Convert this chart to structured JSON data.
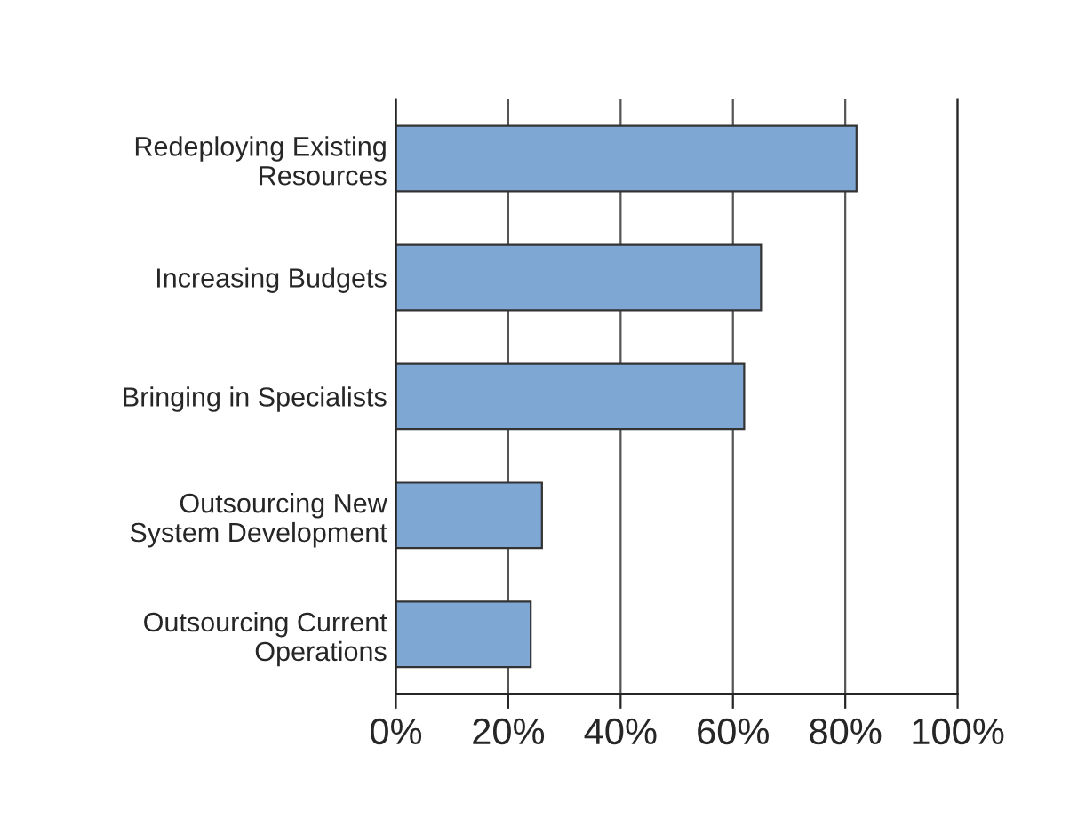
{
  "chart_data": {
    "type": "bar",
    "orientation": "horizontal",
    "categories": [
      "Redeploying Existing\nResources",
      "Increasing Budgets",
      "Bringing in Specialists",
      "Outsourcing New\nSystem Development",
      "Outsourcing Current\nOperations"
    ],
    "values": [
      82,
      65,
      62,
      26,
      24
    ],
    "color": "#7fa7d4",
    "xlim": [
      0,
      100
    ],
    "xticks": [
      {
        "value": 0,
        "label": "0%"
      },
      {
        "value": 20,
        "label": "20%"
      },
      {
        "value": 40,
        "label": "40%"
      },
      {
        "value": 60,
        "label": "60%"
      },
      {
        "value": 80,
        "label": "80%"
      },
      {
        "value": 100,
        "label": "100%"
      }
    ],
    "grid": "x"
  }
}
